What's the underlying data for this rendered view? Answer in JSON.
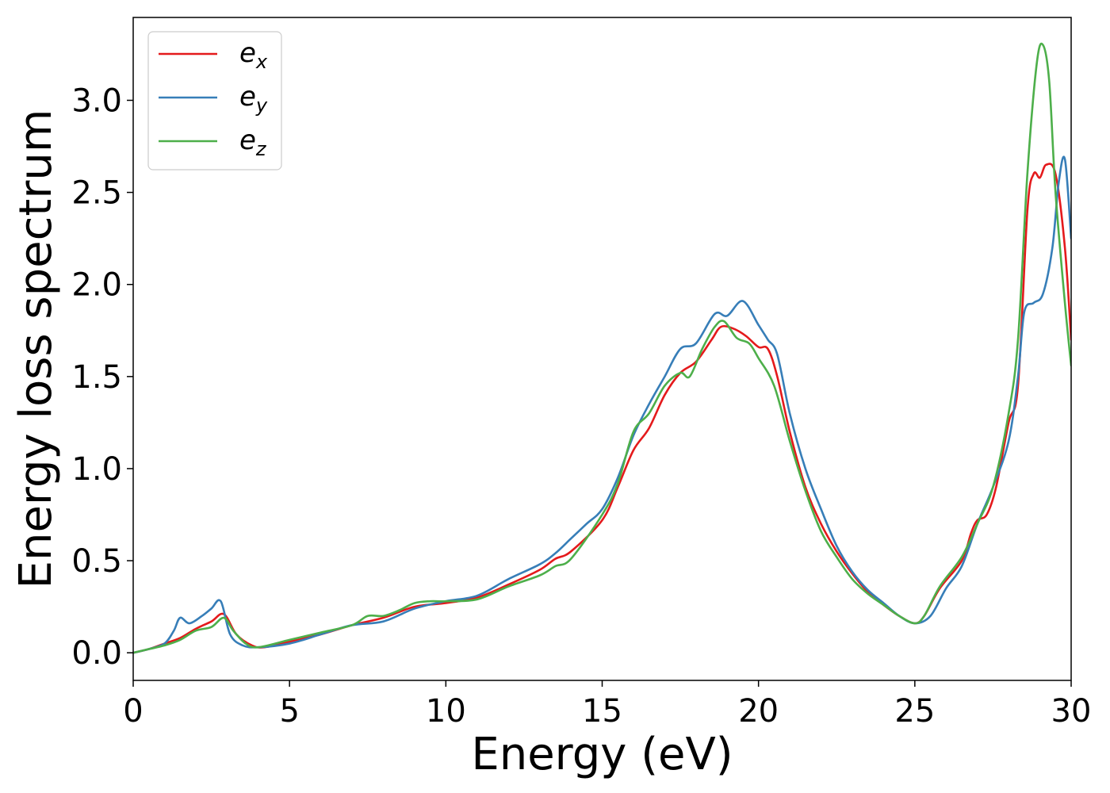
{
  "chart_data": {
    "type": "line",
    "title": "",
    "xlabel": "Energy (eV)",
    "ylabel": "Energy loss spectrum",
    "xlim": [
      0,
      30
    ],
    "ylim": [
      -0.15,
      3.45
    ],
    "xticks": [
      0,
      5,
      10,
      15,
      20,
      25,
      30
    ],
    "xtick_labels": [
      "0",
      "5",
      "10",
      "15",
      "20",
      "25",
      "30"
    ],
    "yticks": [
      0.0,
      0.5,
      1.0,
      1.5,
      2.0,
      2.5,
      3.0
    ],
    "ytick_labels": [
      "0.0",
      "0.5",
      "1.0",
      "1.5",
      "2.0",
      "2.5",
      "3.0"
    ],
    "grid": false,
    "legend_position": "top-left",
    "series": [
      {
        "name": "e",
        "subscript": "x",
        "color": "#e41a1c",
        "points": [
          [
            0,
            0.0
          ],
          [
            0.5,
            0.02
          ],
          [
            1.0,
            0.05
          ],
          [
            1.5,
            0.08
          ],
          [
            2.0,
            0.13
          ],
          [
            2.5,
            0.17
          ],
          [
            2.9,
            0.21
          ],
          [
            3.3,
            0.1
          ],
          [
            3.8,
            0.04
          ],
          [
            4.2,
            0.03
          ],
          [
            5.0,
            0.06
          ],
          [
            6.0,
            0.1
          ],
          [
            7.0,
            0.15
          ],
          [
            8.0,
            0.19
          ],
          [
            9.0,
            0.25
          ],
          [
            10.0,
            0.27
          ],
          [
            11.0,
            0.3
          ],
          [
            12.0,
            0.37
          ],
          [
            13.0,
            0.45
          ],
          [
            13.5,
            0.51
          ],
          [
            14.0,
            0.55
          ],
          [
            15.0,
            0.72
          ],
          [
            15.5,
            0.9
          ],
          [
            16.0,
            1.1
          ],
          [
            16.5,
            1.22
          ],
          [
            17.0,
            1.4
          ],
          [
            17.5,
            1.52
          ],
          [
            18.0,
            1.58
          ],
          [
            18.5,
            1.7
          ],
          [
            18.8,
            1.77
          ],
          [
            19.2,
            1.76
          ],
          [
            19.6,
            1.72
          ],
          [
            20.0,
            1.66
          ],
          [
            20.3,
            1.65
          ],
          [
            20.6,
            1.5
          ],
          [
            21.0,
            1.2
          ],
          [
            21.5,
            0.9
          ],
          [
            22.0,
            0.7
          ],
          [
            22.5,
            0.55
          ],
          [
            23.0,
            0.43
          ],
          [
            23.5,
            0.33
          ],
          [
            24.0,
            0.26
          ],
          [
            24.5,
            0.2
          ],
          [
            25.0,
            0.16
          ],
          [
            25.3,
            0.2
          ],
          [
            25.8,
            0.35
          ],
          [
            26.5,
            0.5
          ],
          [
            26.8,
            0.65
          ],
          [
            27.0,
            0.72
          ],
          [
            27.3,
            0.75
          ],
          [
            27.6,
            0.9
          ],
          [
            28.0,
            1.25
          ],
          [
            28.3,
            1.45
          ],
          [
            28.6,
            2.4
          ],
          [
            28.8,
            2.6
          ],
          [
            29.0,
            2.58
          ],
          [
            29.2,
            2.65
          ],
          [
            29.5,
            2.6
          ],
          [
            29.8,
            2.2
          ],
          [
            30.0,
            1.7
          ]
        ]
      },
      {
        "name": "e",
        "subscript": "y",
        "color": "#377eb8",
        "points": [
          [
            0,
            0.0
          ],
          [
            0.5,
            0.02
          ],
          [
            1.0,
            0.05
          ],
          [
            1.3,
            0.12
          ],
          [
            1.5,
            0.19
          ],
          [
            1.8,
            0.16
          ],
          [
            2.2,
            0.2
          ],
          [
            2.5,
            0.24
          ],
          [
            2.8,
            0.28
          ],
          [
            3.1,
            0.1
          ],
          [
            3.5,
            0.04
          ],
          [
            4.0,
            0.03
          ],
          [
            5.0,
            0.05
          ],
          [
            6.0,
            0.1
          ],
          [
            7.0,
            0.15
          ],
          [
            8.0,
            0.17
          ],
          [
            9.0,
            0.24
          ],
          [
            10.0,
            0.28
          ],
          [
            11.0,
            0.31
          ],
          [
            12.0,
            0.4
          ],
          [
            13.0,
            0.48
          ],
          [
            13.5,
            0.54
          ],
          [
            14.0,
            0.62
          ],
          [
            14.5,
            0.7
          ],
          [
            15.0,
            0.78
          ],
          [
            15.5,
            0.95
          ],
          [
            16.0,
            1.18
          ],
          [
            16.5,
            1.35
          ],
          [
            17.0,
            1.5
          ],
          [
            17.5,
            1.65
          ],
          [
            18.0,
            1.68
          ],
          [
            18.6,
            1.84
          ],
          [
            19.0,
            1.83
          ],
          [
            19.5,
            1.91
          ],
          [
            20.0,
            1.78
          ],
          [
            20.3,
            1.7
          ],
          [
            20.6,
            1.62
          ],
          [
            21.0,
            1.3
          ],
          [
            21.5,
            1.0
          ],
          [
            22.0,
            0.78
          ],
          [
            22.5,
            0.58
          ],
          [
            23.0,
            0.44
          ],
          [
            23.5,
            0.34
          ],
          [
            24.0,
            0.27
          ],
          [
            24.5,
            0.2
          ],
          [
            25.0,
            0.16
          ],
          [
            25.5,
            0.2
          ],
          [
            26.0,
            0.35
          ],
          [
            26.5,
            0.47
          ],
          [
            27.0,
            0.7
          ],
          [
            27.5,
            0.9
          ],
          [
            28.0,
            1.15
          ],
          [
            28.3,
            1.5
          ],
          [
            28.5,
            1.85
          ],
          [
            28.8,
            1.9
          ],
          [
            29.1,
            1.95
          ],
          [
            29.4,
            2.2
          ],
          [
            29.6,
            2.55
          ],
          [
            29.8,
            2.68
          ],
          [
            30.0,
            2.25
          ]
        ]
      },
      {
        "name": "e",
        "subscript": "z",
        "color": "#4daf4a",
        "points": [
          [
            0,
            0.0
          ],
          [
            0.5,
            0.02
          ],
          [
            1.0,
            0.04
          ],
          [
            1.5,
            0.07
          ],
          [
            2.0,
            0.12
          ],
          [
            2.5,
            0.14
          ],
          [
            2.9,
            0.19
          ],
          [
            3.2,
            0.12
          ],
          [
            3.6,
            0.05
          ],
          [
            4.0,
            0.03
          ],
          [
            5.0,
            0.07
          ],
          [
            6.0,
            0.11
          ],
          [
            7.0,
            0.15
          ],
          [
            7.5,
            0.2
          ],
          [
            8.0,
            0.2
          ],
          [
            8.5,
            0.23
          ],
          [
            9.0,
            0.27
          ],
          [
            9.5,
            0.28
          ],
          [
            10.0,
            0.28
          ],
          [
            11.0,
            0.29
          ],
          [
            12.0,
            0.36
          ],
          [
            13.0,
            0.42
          ],
          [
            13.5,
            0.47
          ],
          [
            14.0,
            0.51
          ],
          [
            15.0,
            0.75
          ],
          [
            15.5,
            0.92
          ],
          [
            16.0,
            1.2
          ],
          [
            16.5,
            1.3
          ],
          [
            17.0,
            1.45
          ],
          [
            17.5,
            1.52
          ],
          [
            17.8,
            1.5
          ],
          [
            18.2,
            1.65
          ],
          [
            18.6,
            1.77
          ],
          [
            18.9,
            1.8
          ],
          [
            19.3,
            1.71
          ],
          [
            19.7,
            1.68
          ],
          [
            20.0,
            1.6
          ],
          [
            20.5,
            1.45
          ],
          [
            21.0,
            1.15
          ],
          [
            21.5,
            0.88
          ],
          [
            22.0,
            0.66
          ],
          [
            22.5,
            0.52
          ],
          [
            23.0,
            0.4
          ],
          [
            23.5,
            0.32
          ],
          [
            24.0,
            0.26
          ],
          [
            24.5,
            0.2
          ],
          [
            25.0,
            0.16
          ],
          [
            25.3,
            0.2
          ],
          [
            25.8,
            0.36
          ],
          [
            26.5,
            0.52
          ],
          [
            27.0,
            0.7
          ],
          [
            27.5,
            0.9
          ],
          [
            28.0,
            1.3
          ],
          [
            28.3,
            1.7
          ],
          [
            28.6,
            2.6
          ],
          [
            28.9,
            3.2
          ],
          [
            29.1,
            3.3
          ],
          [
            29.3,
            3.1
          ],
          [
            29.5,
            2.5
          ],
          [
            29.8,
            1.9
          ],
          [
            30.0,
            1.56
          ]
        ]
      }
    ]
  }
}
